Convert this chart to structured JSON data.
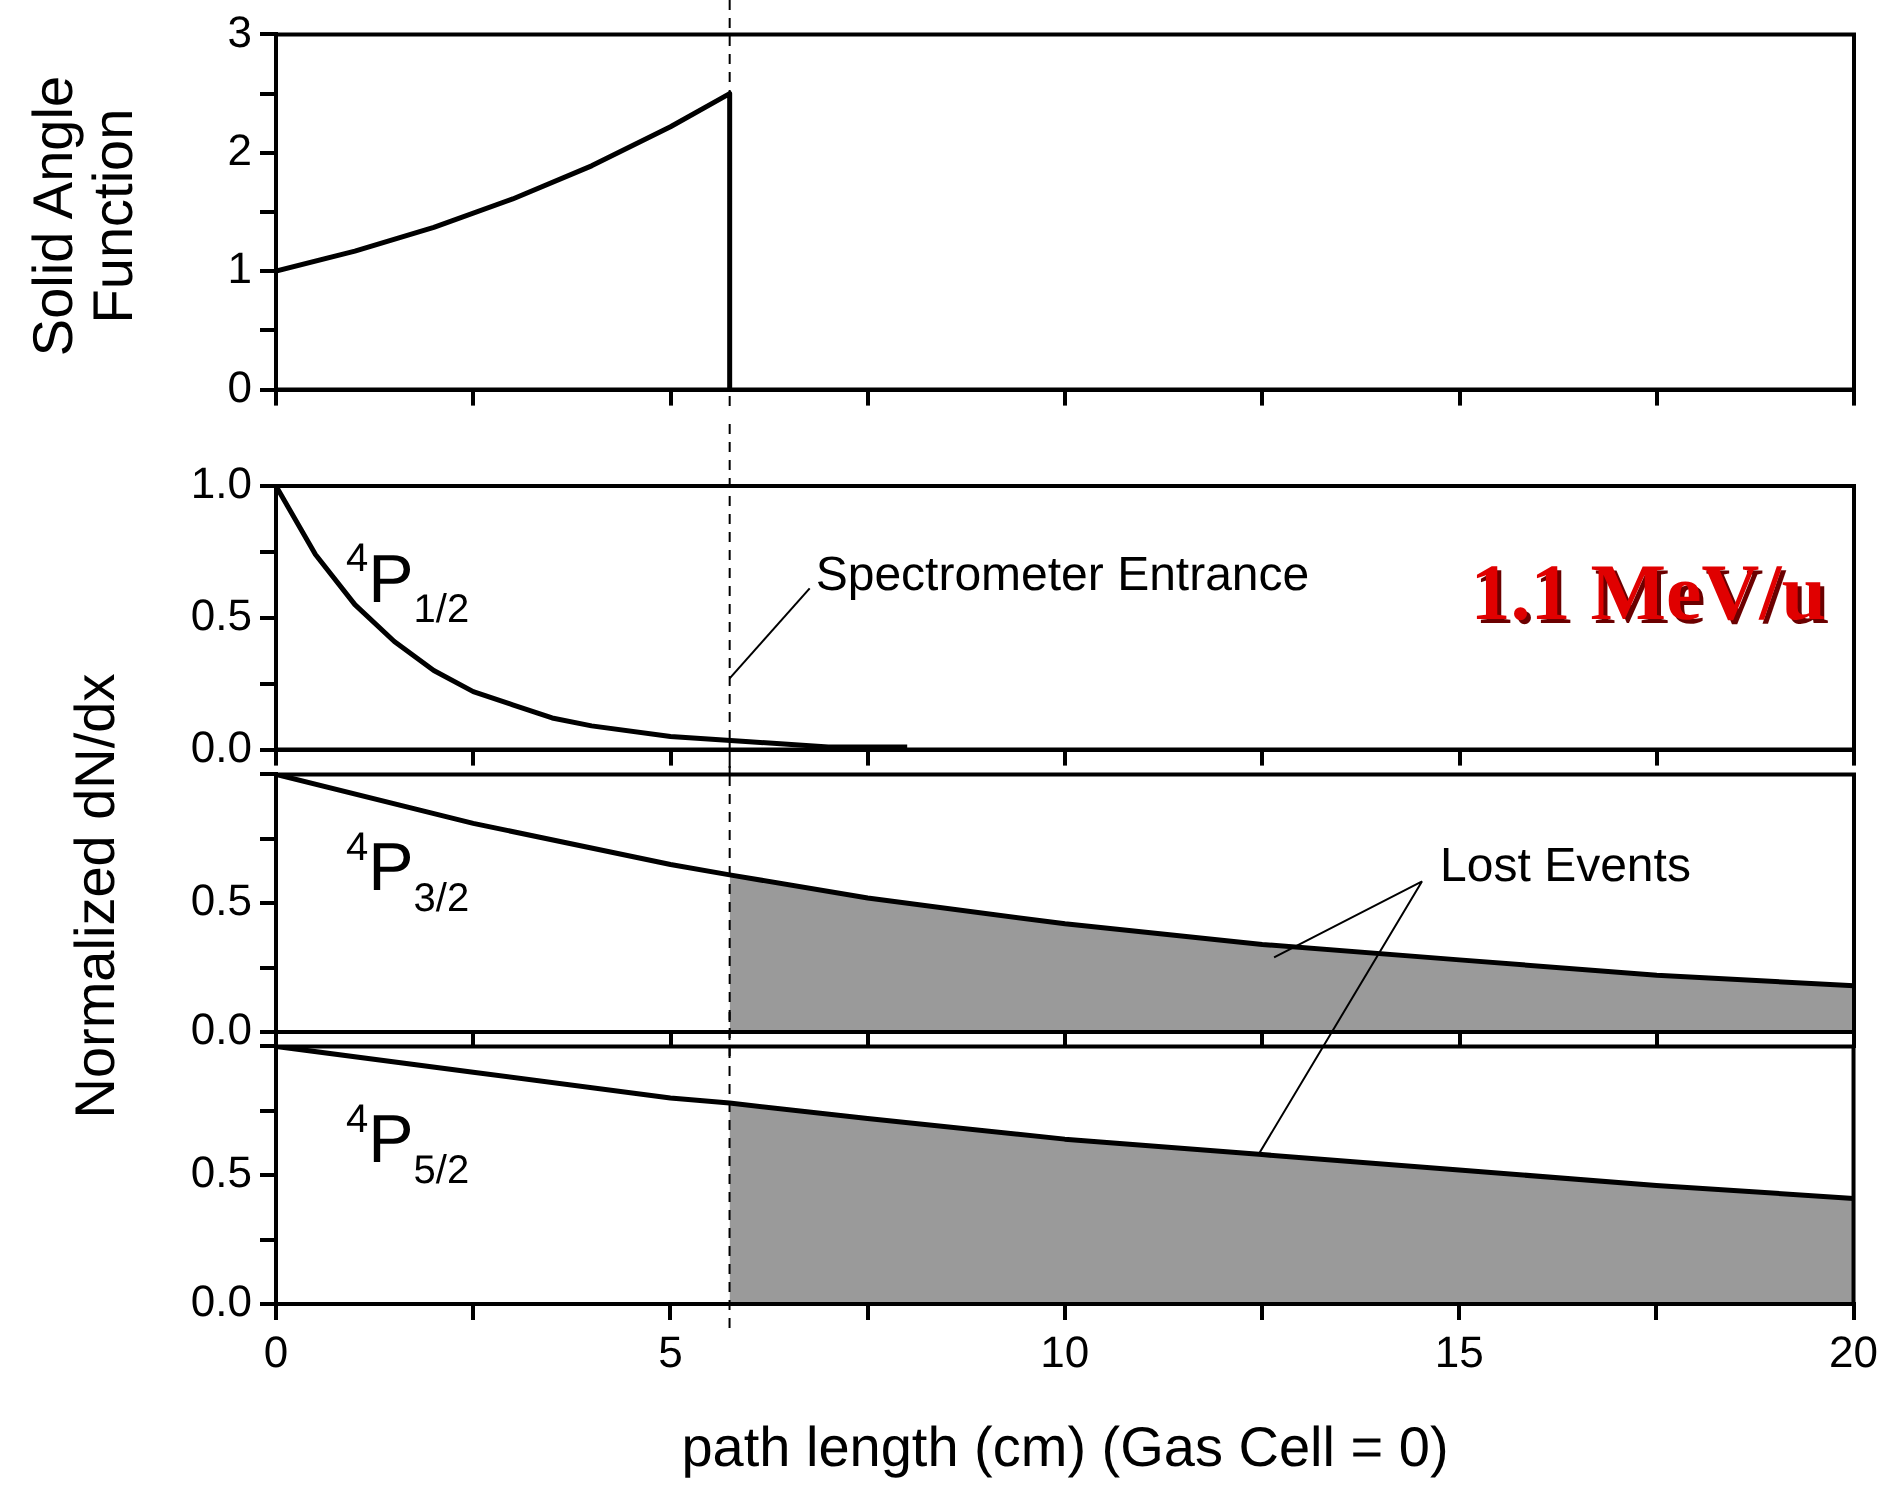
{
  "chart_data": [
    {
      "type": "line",
      "ylabel": "Solid Angle Function",
      "xlim": [
        0,
        20
      ],
      "xticks": [
        0,
        {
          "value": 2.5,
          "label": null
        },
        5,
        {
          "value": 7.5,
          "label": null
        },
        10,
        {
          "value": 12.5,
          "label": null
        },
        15,
        {
          "value": 17.5,
          "label": null
        },
        20
      ],
      "ylim": [
        0,
        3
      ],
      "yticks": [
        0,
        {
          "value": 0.5,
          "label": null
        },
        1,
        {
          "value": 1.5,
          "label": null
        },
        2,
        {
          "value": 2.5,
          "label": null
        },
        3
      ],
      "tick_labels": "y",
      "series": [
        {
          "color": "#000000",
          "x": [
            0,
            1,
            2,
            3,
            4,
            5,
            5.75,
            5.75
          ],
          "values": [
            1,
            1.17,
            1.37,
            1.61,
            1.89,
            2.22,
            2.5,
            0
          ]
        }
      ],
      "ref_lines": [
        {
          "axis": "x",
          "value": 5.75,
          "line_style": "dashed",
          "color": "#000000"
        }
      ]
    },
    {
      "type": "line",
      "xlim": [
        0,
        20
      ],
      "xticks": [
        0,
        {
          "value": 2.5,
          "label": null
        },
        5,
        {
          "value": 7.5,
          "label": null
        },
        10,
        {
          "value": 12.5,
          "label": null
        },
        15,
        {
          "value": 17.5,
          "label": null
        },
        20
      ],
      "ylim": [
        0,
        1
      ],
      "yticks": [
        {
          "value": 0,
          "label": "0.0"
        },
        {
          "value": 0.25,
          "label": null
        },
        {
          "value": 0.5,
          "label": "0.5"
        },
        {
          "value": 0.75,
          "label": null
        },
        {
          "value": 1,
          "label": "1.0"
        }
      ],
      "tick_labels": "y",
      "series": [
        {
          "name": "$^{4}$P$_{1/2}$",
          "color": "#000000",
          "x": [
            0,
            0.5,
            1,
            1.5,
            2,
            2.5,
            3,
            3.5,
            4,
            5,
            6,
            7,
            8
          ],
          "values": [
            1,
            0.74,
            0.55,
            0.41,
            0.3,
            0.22,
            0.17,
            0.12,
            0.09,
            0.05,
            0.03,
            0.01,
            0.01
          ]
        }
      ],
      "annotations": [
        {
          "text": "Spectrometer Entrance",
          "x": 5.75,
          "y": 0.27
        },
        "1.1 MeV/u"
      ],
      "ref_lines": [
        {
          "axis": "x",
          "value": 5.75,
          "line_style": "dashed",
          "color": "#000000"
        }
      ]
    },
    {
      "type": "line",
      "ylabel": "Normalized dN/dx",
      "xlim": [
        0,
        20
      ],
      "xticks": [
        0,
        {
          "value": 2.5,
          "label": null
        },
        5,
        {
          "value": 7.5,
          "label": null
        },
        10,
        {
          "value": 12.5,
          "label": null
        },
        15,
        {
          "value": 17.5,
          "label": null
        },
        20
      ],
      "ylim": [
        0,
        1
      ],
      "yticks": [
        {
          "value": 0,
          "label": "0.0"
        },
        {
          "value": 0.25,
          "label": null
        },
        {
          "value": 0.5,
          "label": "0.5"
        },
        {
          "value": 0.75,
          "label": null
        },
        {
          "value": 1,
          "label": null
        }
      ],
      "tick_labels": "y",
      "series": [
        {
          "name": "$^{4}$P$_{3/2}$",
          "color": "#000000",
          "x": [
            0,
            2.5,
            5,
            5.75,
            7.5,
            10,
            12.5,
            15,
            17.5,
            20
          ],
          "values": [
            1,
            0.81,
            0.65,
            0.61,
            0.52,
            0.42,
            0.34,
            0.28,
            0.22,
            0.18
          ]
        },
        {
          "type": "area",
          "color": "#9a9a9a",
          "x": [
            5.75,
            7.5,
            10,
            12.5,
            15,
            17.5,
            20
          ],
          "values": [
            0.61,
            0.52,
            0.42,
            0.34,
            0.28,
            0.22,
            0.18
          ]
        }
      ],
      "annotations": [
        {
          "text": "Lost Events",
          "x": 12.65,
          "y": 0.29
        }
      ],
      "ref_lines": [
        {
          "axis": "x",
          "value": 5.75,
          "line_style": "dashed",
          "color": "#000000"
        }
      ]
    },
    {
      "type": "line",
      "xlabel": "path length (cm) (Gas Cell = 0)",
      "xlim": [
        0,
        20
      ],
      "xticks": [
        0,
        {
          "value": 2.5,
          "label": null
        },
        5,
        {
          "value": 7.5,
          "label": null
        },
        10,
        {
          "value": 12.5,
          "label": null
        },
        15,
        {
          "value": 17.5,
          "label": null
        },
        20
      ],
      "ylim": [
        0,
        1
      ],
      "yticks": [
        {
          "value": 0,
          "label": "0.0"
        },
        {
          "value": 0.25,
          "label": null
        },
        {
          "value": 0.5,
          "label": "0.5"
        },
        {
          "value": 0.75,
          "label": null
        },
        {
          "value": 1,
          "label": null
        }
      ],
      "series": [
        {
          "name": "$^{4}$P$_{5/2}$",
          "color": "#000000",
          "x": [
            0,
            2.5,
            5,
            5.75,
            7.5,
            10,
            12.5,
            15,
            17.5,
            20
          ],
          "values": [
            1,
            0.9,
            0.8,
            0.78,
            0.72,
            0.64,
            0.58,
            0.52,
            0.46,
            0.41
          ]
        },
        {
          "type": "area",
          "color": "#9a9a9a",
          "x": [
            5.75,
            7.5,
            10,
            12.5,
            15,
            17.5,
            20
          ],
          "values": [
            0.78,
            0.72,
            0.64,
            0.58,
            0.52,
            0.46,
            0.41
          ]
        }
      ],
      "ref_lines": [
        {
          "axis": "x",
          "value": 5.75,
          "line_style": "dashed",
          "color": "#000000"
        }
      ]
    }
  ]
}
